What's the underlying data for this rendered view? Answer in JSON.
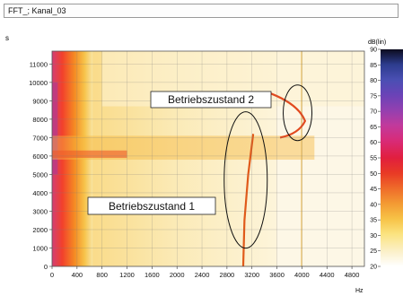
{
  "window": {
    "title": "FFT_; Kanal_03"
  },
  "chart_data": {
    "type": "heatmap",
    "xlabel": "Hz",
    "ylabel": "s",
    "colorbar_label": "dB(lin)",
    "xlim": [
      0,
      5000
    ],
    "ylim": [
      0,
      11700
    ],
    "x_ticks": [
      0,
      400,
      800,
      1200,
      1600,
      2000,
      2400,
      2800,
      3200,
      3600,
      4000,
      4400,
      4800
    ],
    "y_ticks": [
      0,
      1000,
      2000,
      3000,
      4000,
      5000,
      6000,
      7000,
      8000,
      9000,
      10000,
      11000
    ],
    "colorbar": {
      "range": [
        20,
        90
      ],
      "ticks": [
        20,
        25,
        30,
        35,
        40,
        45,
        50,
        55,
        60,
        65,
        70,
        75,
        80,
        85,
        90
      ]
    },
    "annotations": [
      {
        "text": "Betriebszustand 2",
        "x": 4050,
        "y": 8100
      },
      {
        "text": "Betriebszustand 1",
        "x": 3050,
        "y": 3300
      }
    ]
  }
}
